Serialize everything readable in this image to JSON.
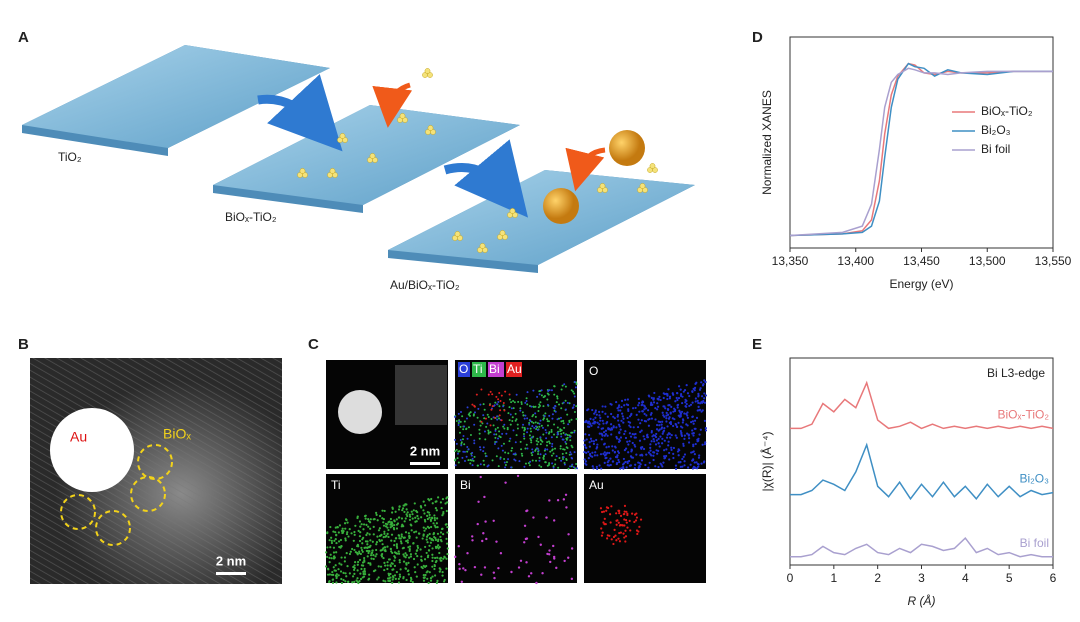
{
  "panels": [
    "A",
    "B",
    "C",
    "D",
    "E"
  ],
  "schematic": {
    "labels": [
      "TiO₂",
      "BiOₓ-TiO₂",
      "Au/BiOₓ-TiO₂"
    ]
  },
  "tem": {
    "labels": [
      "Au",
      "BiOₓ"
    ],
    "scale_bar": "2 nm"
  },
  "eds": {
    "legend": [
      "O",
      "Ti",
      "Bi",
      "Au"
    ],
    "maps": [
      "O",
      "Ti",
      "Bi",
      "Au"
    ],
    "scale_bar": "2 nm"
  },
  "chart_data": [
    {
      "type": "line",
      "xlabel": "Energy (eV)",
      "ylabel": "Normalized XANES",
      "x": [
        13350,
        13390,
        13405,
        13412,
        13418,
        13422,
        13427,
        13432,
        13440,
        13445,
        13452,
        13460,
        13470,
        13480,
        13500,
        13520,
        13550
      ],
      "series": [
        {
          "name": "BiOₓ-TiO₂",
          "color": "#e8787a",
          "values": [
            0,
            0.01,
            0.03,
            0.1,
            0.35,
            0.65,
            0.9,
            1.02,
            1.1,
            1.09,
            1.04,
            1.03,
            1.05,
            1.04,
            1.04,
            1.05,
            1.05
          ]
        },
        {
          "name": "Bi₂O₃",
          "color": "#3f8fc4",
          "values": [
            0,
            0.01,
            0.02,
            0.06,
            0.22,
            0.5,
            0.82,
            1.0,
            1.1,
            1.08,
            1.07,
            1.02,
            1.06,
            1.04,
            1.03,
            1.05,
            1.05
          ]
        },
        {
          "name": "Bi foil",
          "color": "#a9a0cf",
          "values": [
            0,
            0.02,
            0.06,
            0.2,
            0.55,
            0.82,
            0.98,
            1.03,
            1.07,
            1.06,
            1.04,
            1.04,
            1.03,
            1.04,
            1.05,
            1.05,
            1.05
          ]
        }
      ],
      "xlim": [
        13350,
        13550
      ],
      "ylim": [
        -0.08,
        1.27
      ],
      "xticks": [
        {
          "value": 13350,
          "label": "13,350"
        },
        {
          "value": 13400,
          "label": "13,400"
        },
        {
          "value": 13450,
          "label": "13,450"
        },
        {
          "value": 13500,
          "label": "13,500"
        },
        {
          "value": 13550,
          "label": "13,550"
        }
      ],
      "legend": "right"
    },
    {
      "type": "line",
      "xlabel": "R (Å)",
      "ylabel": "|χ(R)| (Å⁻⁴)",
      "annotation": "Bi L3-edge",
      "x": [
        0,
        0.25,
        0.5,
        0.75,
        1,
        1.25,
        1.5,
        1.75,
        2,
        2.25,
        2.5,
        2.75,
        3,
        3.25,
        3.5,
        3.75,
        4,
        4.25,
        4.5,
        4.75,
        5,
        5.25,
        5.5,
        5.75,
        6
      ],
      "series": [
        {
          "name": "BiOₓ-TiO₂",
          "color": "#e8787a",
          "values": [
            6.6,
            6.6,
            6.8,
            7.8,
            7.4,
            8.0,
            7.6,
            8.8,
            7.0,
            6.6,
            6.7,
            6.9,
            6.6,
            6.8,
            6.6,
            6.7,
            6.6,
            6.7,
            6.6,
            6.7,
            6.6,
            6.7,
            6.6,
            6.7,
            6.6
          ]
        },
        {
          "name": "Bi₂O₃",
          "color": "#3f8fc4",
          "values": [
            3.4,
            3.4,
            3.6,
            4.1,
            3.9,
            3.6,
            4.5,
            5.8,
            3.8,
            3.3,
            4.0,
            3.2,
            3.9,
            3.3,
            4.0,
            3.3,
            3.8,
            3.2,
            3.9,
            3.3,
            3.8,
            3.3,
            3.6,
            3.4,
            3.5
          ]
        },
        {
          "name": "Bi foil",
          "color": "#a9a0cf",
          "values": [
            0.4,
            0.4,
            0.5,
            0.9,
            0.6,
            0.5,
            0.8,
            1.0,
            0.6,
            0.5,
            0.8,
            0.6,
            1.0,
            0.9,
            0.7,
            0.8,
            1.3,
            0.6,
            0.8,
            0.5,
            0.6,
            0.4,
            0.5,
            0.4,
            0.4
          ]
        }
      ],
      "xlim": [
        0,
        6
      ],
      "ylim": [
        0,
        10
      ],
      "xticks": [
        0,
        1,
        2,
        3,
        4,
        5,
        6
      ],
      "legend": "inline"
    }
  ]
}
